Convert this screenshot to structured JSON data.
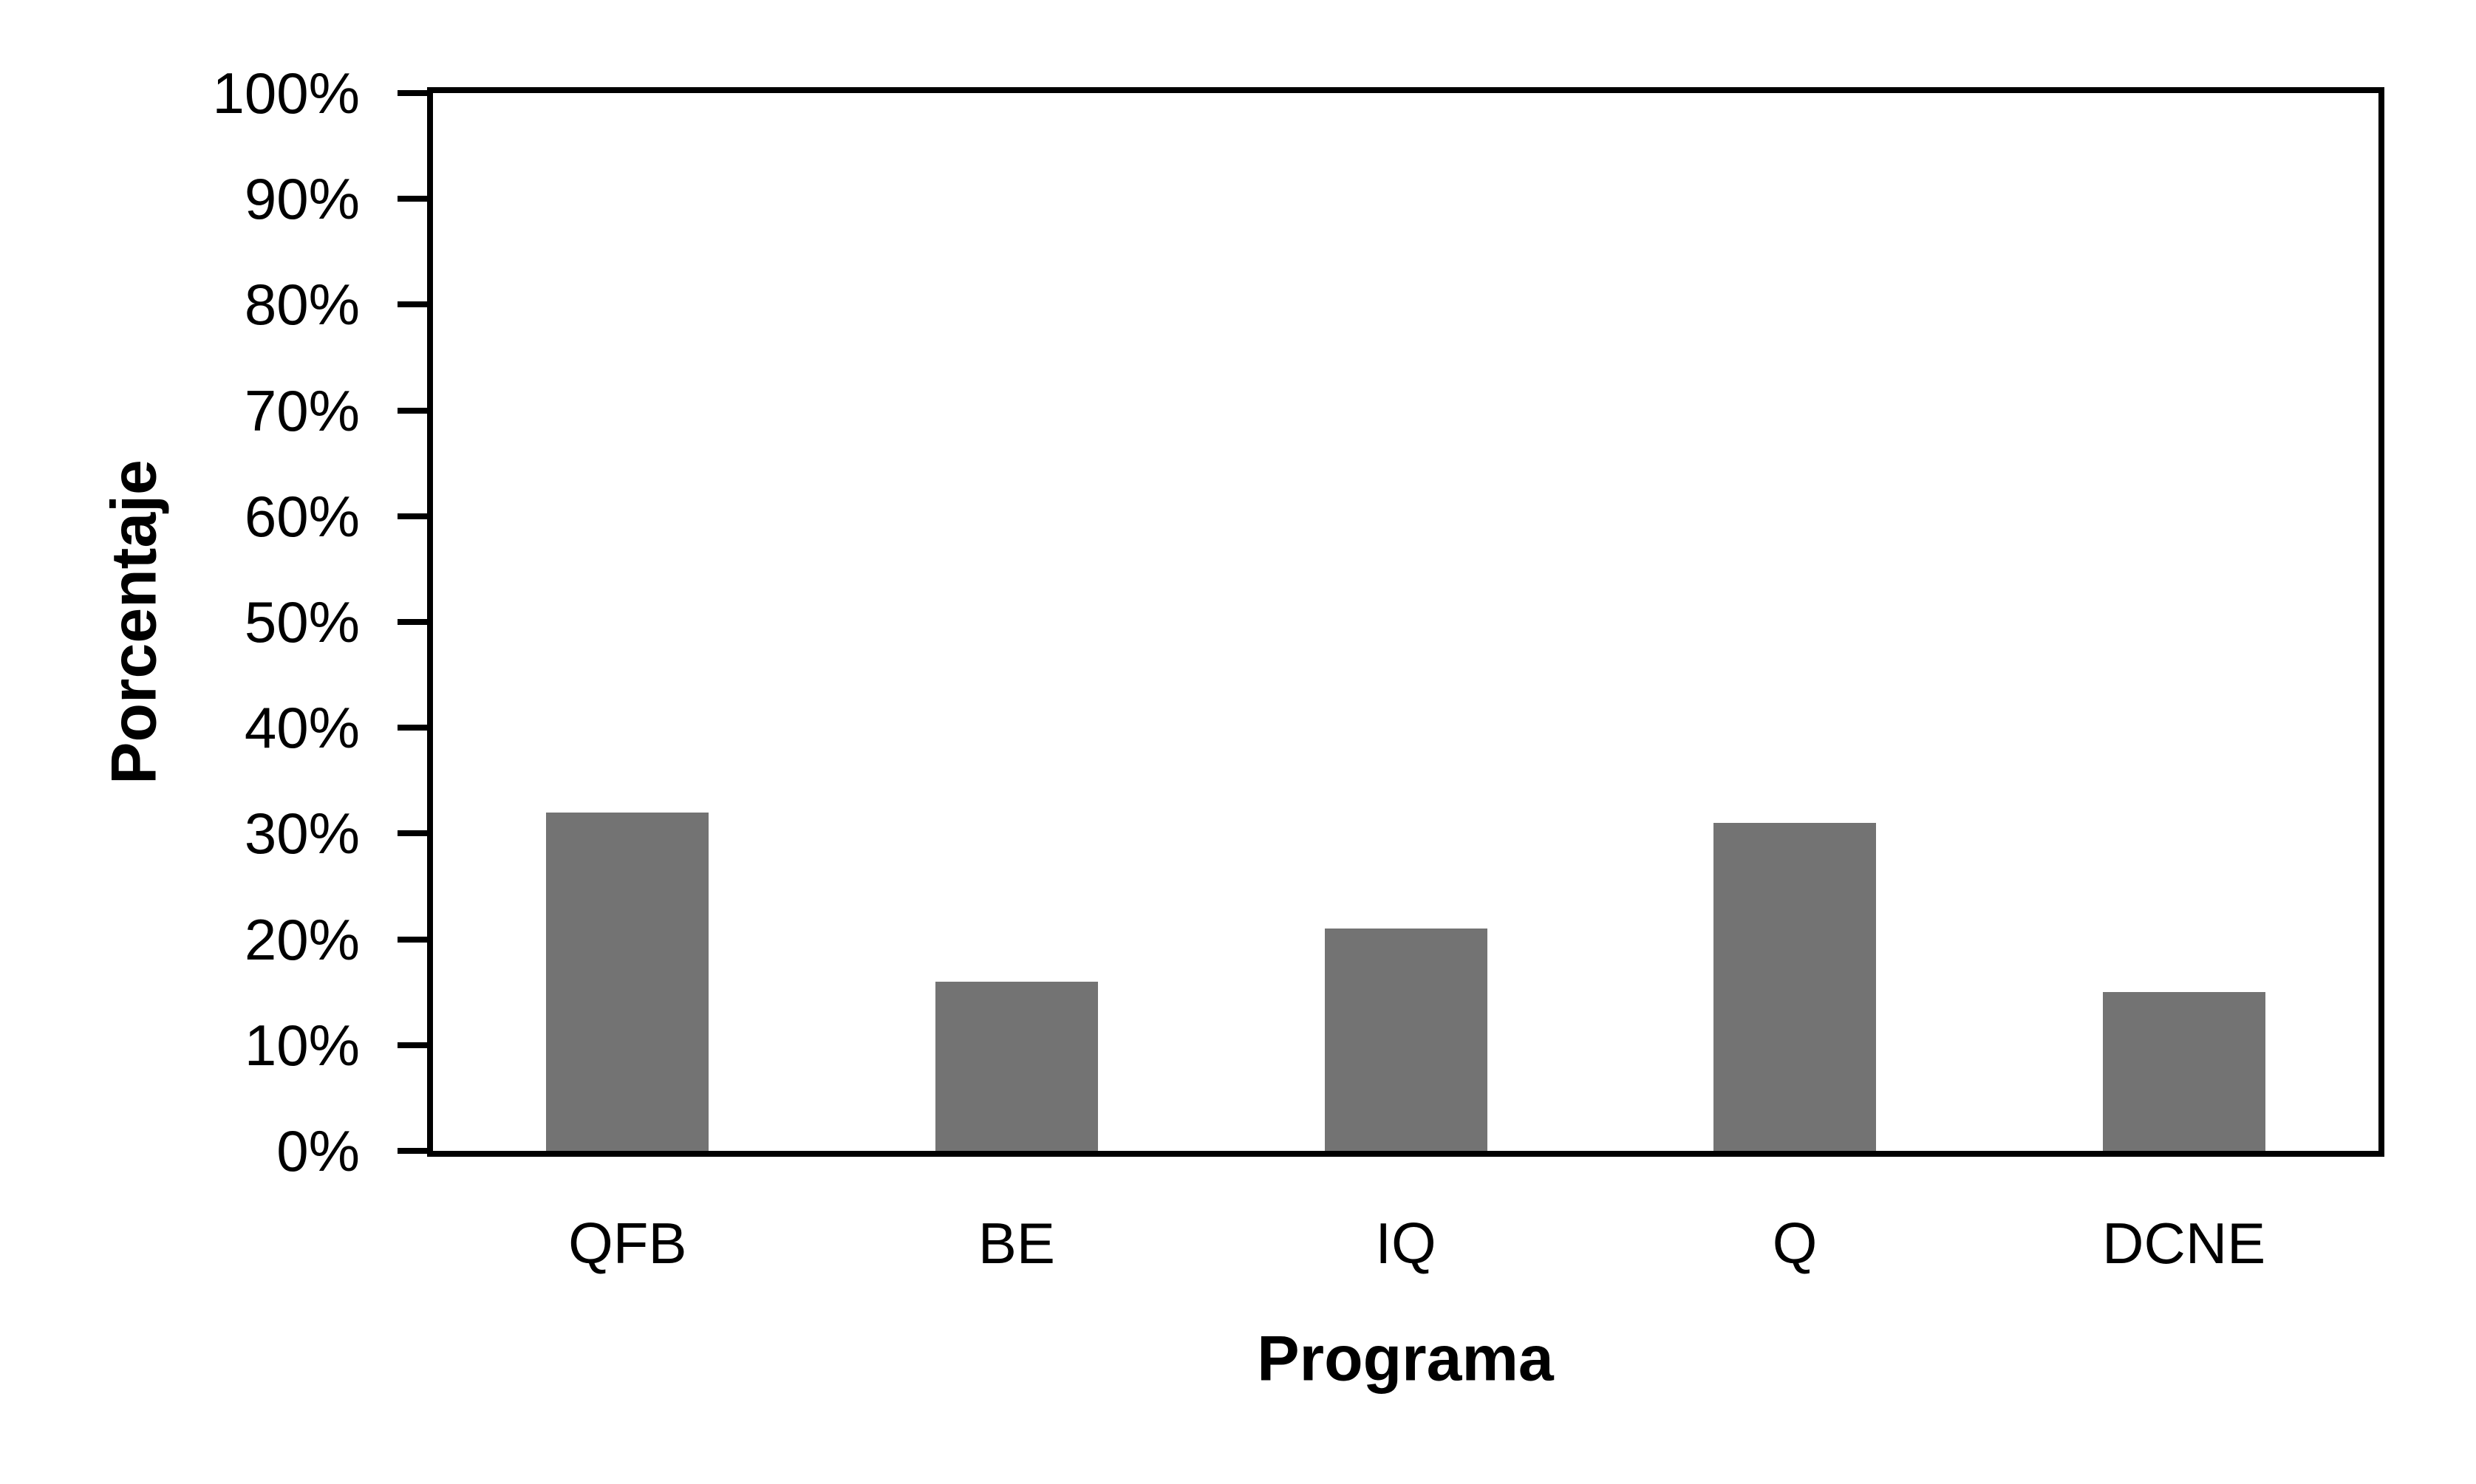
{
  "chart_data": {
    "type": "bar",
    "categories": [
      "QFB",
      "BE",
      "IQ",
      "Q",
      "DCNE"
    ],
    "values": [
      32,
      16,
      21,
      31,
      15
    ],
    "title": "",
    "xlabel": "Programa",
    "ylabel": "Porcentaje",
    "ylim": [
      0,
      100
    ],
    "y_tick_step": 10,
    "y_tick_labels": [
      "0%",
      "10%",
      "20%",
      "30%",
      "40%",
      "50%",
      "60%",
      "70%",
      "80%",
      "90%",
      "100%"
    ],
    "grid": false,
    "legend": false,
    "colors": {
      "bar": "#737373",
      "axis": "#000000",
      "background": "#ffffff"
    }
  }
}
